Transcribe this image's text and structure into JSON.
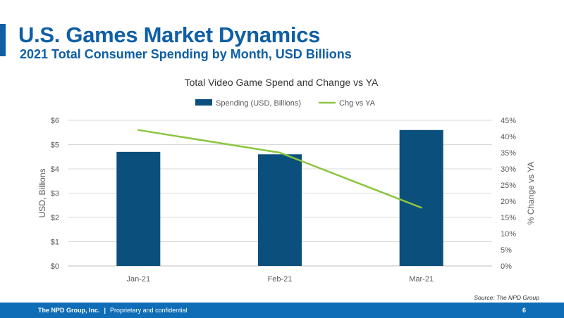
{
  "slide": {
    "title": "U.S. Games Market Dynamics",
    "subtitle": "2021 Total Consumer Spending by Month, USD Billions",
    "source": "Source: The NPD Group",
    "footer_company": "The NPD Group, Inc.",
    "footer_separator": "|",
    "footer_note": "Proprietary and confidential",
    "page_number": "6"
  },
  "colors": {
    "brand_blue": "#0f5fa5",
    "bar": "#0b4f7c",
    "line": "#8cc540",
    "footer": "#0f6db8"
  },
  "chart_data": {
    "type": "bar",
    "title": "Total Video Game Spend and Change vs YA",
    "categories": [
      "Jan-21",
      "Feb-21",
      "Mar-21"
    ],
    "series": [
      {
        "name": "Spending (USD, Billions)",
        "type": "bar",
        "axis": "left",
        "values": [
          4.7,
          4.6,
          5.6
        ]
      },
      {
        "name": "Chg vs YA",
        "type": "line",
        "axis": "right",
        "values": [
          42,
          35,
          18
        ]
      }
    ],
    "ylabel": "USD, Billions",
    "y2label": "% Change vs YA",
    "ylim": [
      0,
      6
    ],
    "y2lim": [
      0,
      45
    ],
    "yticks": [
      "$0",
      "$1",
      "$2",
      "$3",
      "$4",
      "$5",
      "$6"
    ],
    "y2ticks": [
      "0%",
      "5%",
      "10%",
      "15%",
      "20%",
      "25%",
      "30%",
      "35%",
      "40%",
      "45%"
    ],
    "legend_position": "top",
    "grid": true
  }
}
